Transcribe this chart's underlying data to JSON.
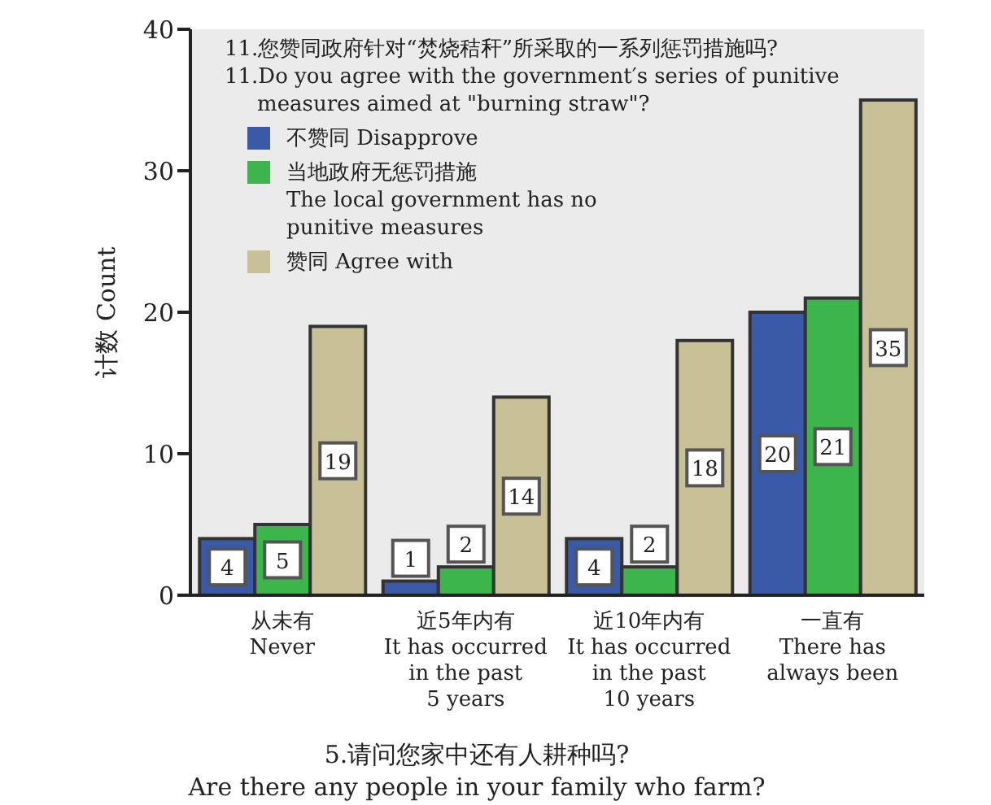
{
  "chart_data": {
    "type": "bar",
    "legend_title": "11.您赞同政府针对“焚烧秸秆”所采取的一系列惩罚措施吗?\n11.Do you agree with the government′s series of punitive\nmeasures aimed at \"burning straw\"?",
    "xlabel": "5.请问您家中还有人耕种吗?\nAre there any people in your family who farm?",
    "ylabel": "计数 Count",
    "categories": [
      "从未有\nNever",
      "近5年内有\nIt has occurred\nin the past\n5 years",
      "近10年内有\nIt has occurred\nin the past\n10 years",
      "一直有\nThere has\nalways been"
    ],
    "series": [
      {
        "name": "不赞同 Disapprove",
        "color": "#3a5aa8",
        "values": [
          4,
          1,
          4,
          20
        ]
      },
      {
        "name": "当地政府无惩罚措施\nThe local government has no\npunitive measures",
        "color": "#3cb54a",
        "values": [
          5,
          2,
          2,
          21
        ]
      },
      {
        "name": "赞同 Agree with",
        "color": "#c8c096",
        "values": [
          19,
          14,
          18,
          35
        ]
      }
    ],
    "ylim": [
      0,
      40
    ],
    "yticks": [
      0,
      10,
      20,
      30,
      40
    ],
    "grid": false,
    "legend": "top left",
    "data_labels": true
  }
}
